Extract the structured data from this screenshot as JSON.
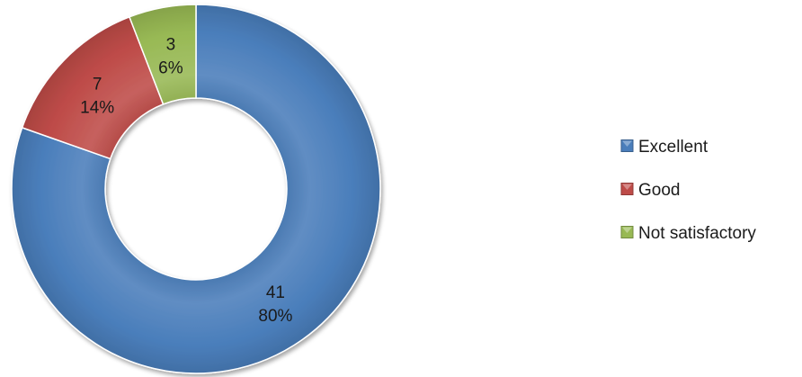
{
  "chart_data": {
    "type": "pie",
    "variant": "doughnut",
    "title": "",
    "categories": [
      "Excellent",
      "Good",
      "Not satisfactory"
    ],
    "values": [
      41,
      7,
      3
    ],
    "percent_labels": [
      "80%",
      "14%",
      "6%"
    ],
    "colors": [
      "#4a7ebb",
      "#be4b48",
      "#98b954"
    ],
    "legend": {
      "position": "right",
      "entries": [
        "Excellent",
        "Good",
        "Not satisfactory"
      ]
    }
  }
}
